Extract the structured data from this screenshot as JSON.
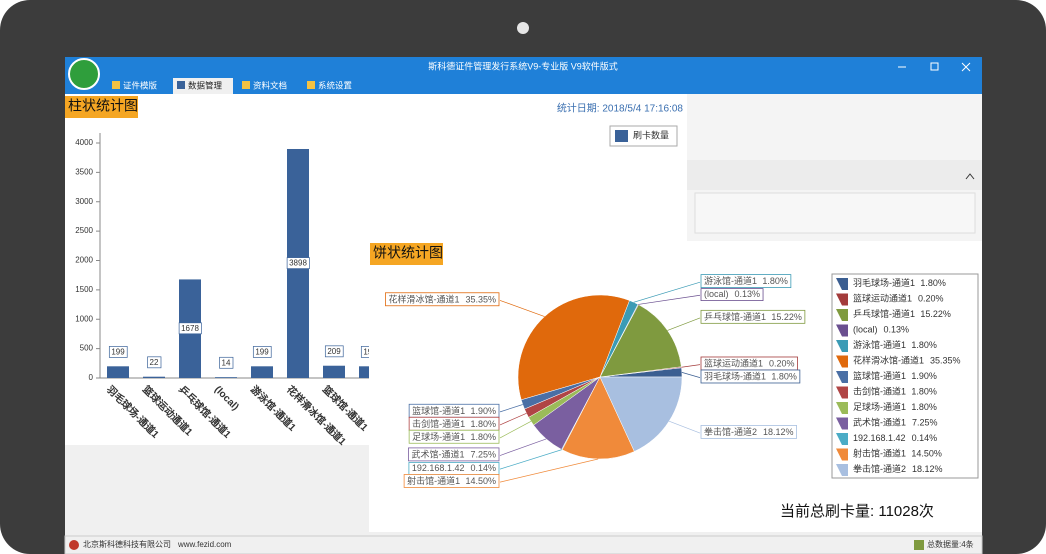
{
  "window": {
    "title": "斯科德证件管理发行系统V9-专业版    V9软件版式",
    "tabs": [
      "证件模版",
      "数据管理",
      "资料文档",
      "系统设置"
    ]
  },
  "chart_data": [
    {
      "type": "bar",
      "title": "柱状统计图",
      "subtitle": "统计日期: 2018/5/4 17:16:08",
      "categories": [
        "羽毛球场-通道1",
        "篮球运动通道1",
        "乒乓球馆-通道1",
        "(local)",
        "游泳馆-通道1",
        "花样滑冰馆-通道1",
        "篮球馆-通道1",
        null
      ],
      "series": [
        {
          "name": "刷卡数量",
          "color": "#3a6299",
          "values": [
            199,
            22,
            1678,
            14,
            199,
            3898,
            209,
            199
          ]
        }
      ],
      "ylim": [
        0,
        4000
      ],
      "yticks": [
        0,
        500,
        1000,
        1500,
        2000,
        2500,
        3000,
        3500,
        4000
      ],
      "legend": "top-right"
    },
    {
      "type": "pie",
      "title": "饼状统计图",
      "categories": [
        "羽毛球场-通道1",
        "篮球运动通道1",
        "乒乓球馆-通道1",
        "(local)",
        "游泳馆-通道1",
        "花样滑冰馆-通道1",
        "篮球馆-通道1",
        "击剑馆-通道1",
        "足球场-通道1",
        "武术馆-通道1",
        "192.168.1.42",
        "射击馆-通道1",
        "拳击馆-通道2"
      ],
      "values": [
        1.8,
        0.2,
        15.22,
        0.13,
        1.8,
        35.35,
        1.9,
        1.8,
        1.8,
        7.25,
        0.14,
        14.5,
        18.12
      ],
      "value_labels": [
        "1.80%",
        "0.20%",
        "15.22%",
        "0.13%",
        "1.80%",
        "35.35%",
        "1.90%",
        "1.80%",
        "1.80%",
        "7.25%",
        "0.14%",
        "14.50%",
        "18.12%"
      ],
      "colors": [
        "#3b5e91",
        "#a33b3b",
        "#7f9a3f",
        "#6a4f8f",
        "#3b9bb5",
        "#e0690c",
        "#4a6fa5",
        "#b04545",
        "#9bbb59",
        "#7a5fa0",
        "#4bacc6",
        "#f08a3a",
        "#a8bfe0"
      ],
      "legend": "right"
    }
  ],
  "summary": "当前总刷卡量:  11028次",
  "status": {
    "company": "北京斯科德科技有限公司",
    "url": "www.fezid.com",
    "count": "总数据量:4条"
  }
}
